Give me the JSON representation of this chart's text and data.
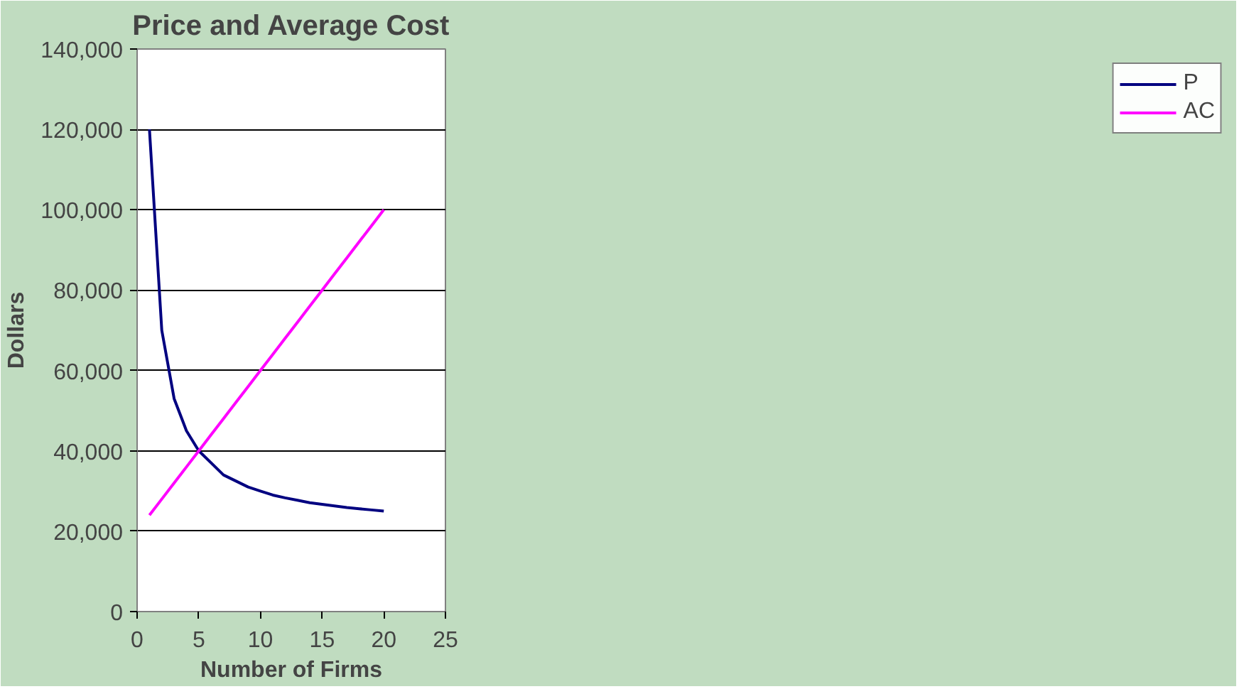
{
  "chart_data": {
    "type": "line",
    "title": "Price and Average Cost",
    "xlabel": "Number of Firms",
    "ylabel": "Dollars",
    "x": [
      1,
      2,
      3,
      4,
      5,
      6,
      7,
      8,
      9,
      10,
      11,
      12,
      13,
      14,
      15,
      16,
      17,
      18,
      19,
      20
    ],
    "series": [
      {
        "name": "P",
        "color": "#000080",
        "values": [
          120000,
          70000,
          53000,
          45000,
          40000,
          37000,
          34000,
          32500,
          31000,
          30000,
          29000,
          28300,
          27700,
          27100,
          26700,
          26300,
          25900,
          25600,
          25300,
          25000
        ]
      },
      {
        "name": "AC",
        "color": "#ff00ff",
        "values": [
          24000,
          28000,
          32000,
          36000,
          40000,
          44000,
          48000,
          52000,
          56000,
          60000,
          64000,
          68000,
          72000,
          76000,
          80000,
          84000,
          88000,
          92000,
          96000,
          100000
        ]
      }
    ],
    "xlim": [
      0,
      25
    ],
    "xticks": [
      0,
      5,
      10,
      15,
      20,
      25
    ],
    "ylim": [
      0,
      140000
    ],
    "yticks": [
      {
        "value": 0,
        "label": "0"
      },
      {
        "value": 20000,
        "label": "20,000"
      },
      {
        "value": 40000,
        "label": "40,000"
      },
      {
        "value": 60000,
        "label": "60,000"
      },
      {
        "value": 80000,
        "label": "80,000"
      },
      {
        "value": 100000,
        "label": "100,000"
      },
      {
        "value": 120000,
        "label": "120,000"
      },
      {
        "value": 140000,
        "label": "140,000"
      }
    ],
    "grid": "y",
    "legend": "right",
    "marker": "none",
    "line_style": "solid"
  }
}
